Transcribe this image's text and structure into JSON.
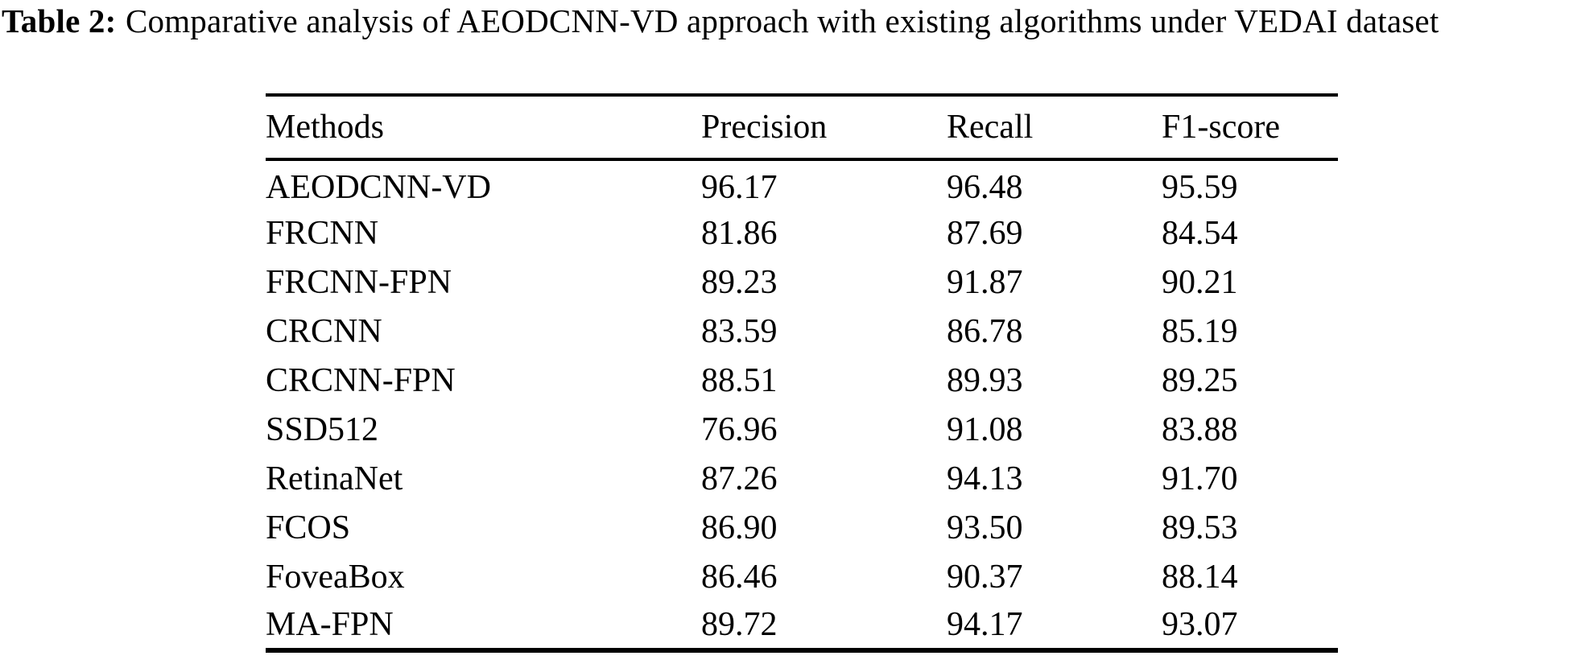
{
  "caption": {
    "label": "Table 2:",
    "text": "Comparative analysis of AEODCNN-VD approach with existing algorithms under VEDAI dataset"
  },
  "table": {
    "headers": [
      "Methods",
      "Precision",
      "Recall",
      "F1-score"
    ],
    "rows": [
      {
        "method": "AEODCNN-VD",
        "precision": "96.17",
        "recall": "96.48",
        "f1": "95.59"
      },
      {
        "method": "FRCNN",
        "precision": "81.86",
        "recall": "87.69",
        "f1": "84.54"
      },
      {
        "method": "FRCNN-FPN",
        "precision": "89.23",
        "recall": "91.87",
        "f1": "90.21"
      },
      {
        "method": "CRCNN",
        "precision": "83.59",
        "recall": "86.78",
        "f1": "85.19"
      },
      {
        "method": "CRCNN-FPN",
        "precision": "88.51",
        "recall": "89.93",
        "f1": "89.25"
      },
      {
        "method": "SSD512",
        "precision": "76.96",
        "recall": "91.08",
        "f1": "83.88"
      },
      {
        "method": "RetinaNet",
        "precision": "87.26",
        "recall": "94.13",
        "f1": "91.70"
      },
      {
        "method": "FCOS",
        "precision": "86.90",
        "recall": "93.50",
        "f1": "89.53"
      },
      {
        "method": "FoveaBox",
        "precision": "86.46",
        "recall": "90.37",
        "f1": "88.14"
      },
      {
        "method": "MA-FPN",
        "precision": "89.72",
        "recall": "94.17",
        "f1": "93.07"
      }
    ]
  }
}
